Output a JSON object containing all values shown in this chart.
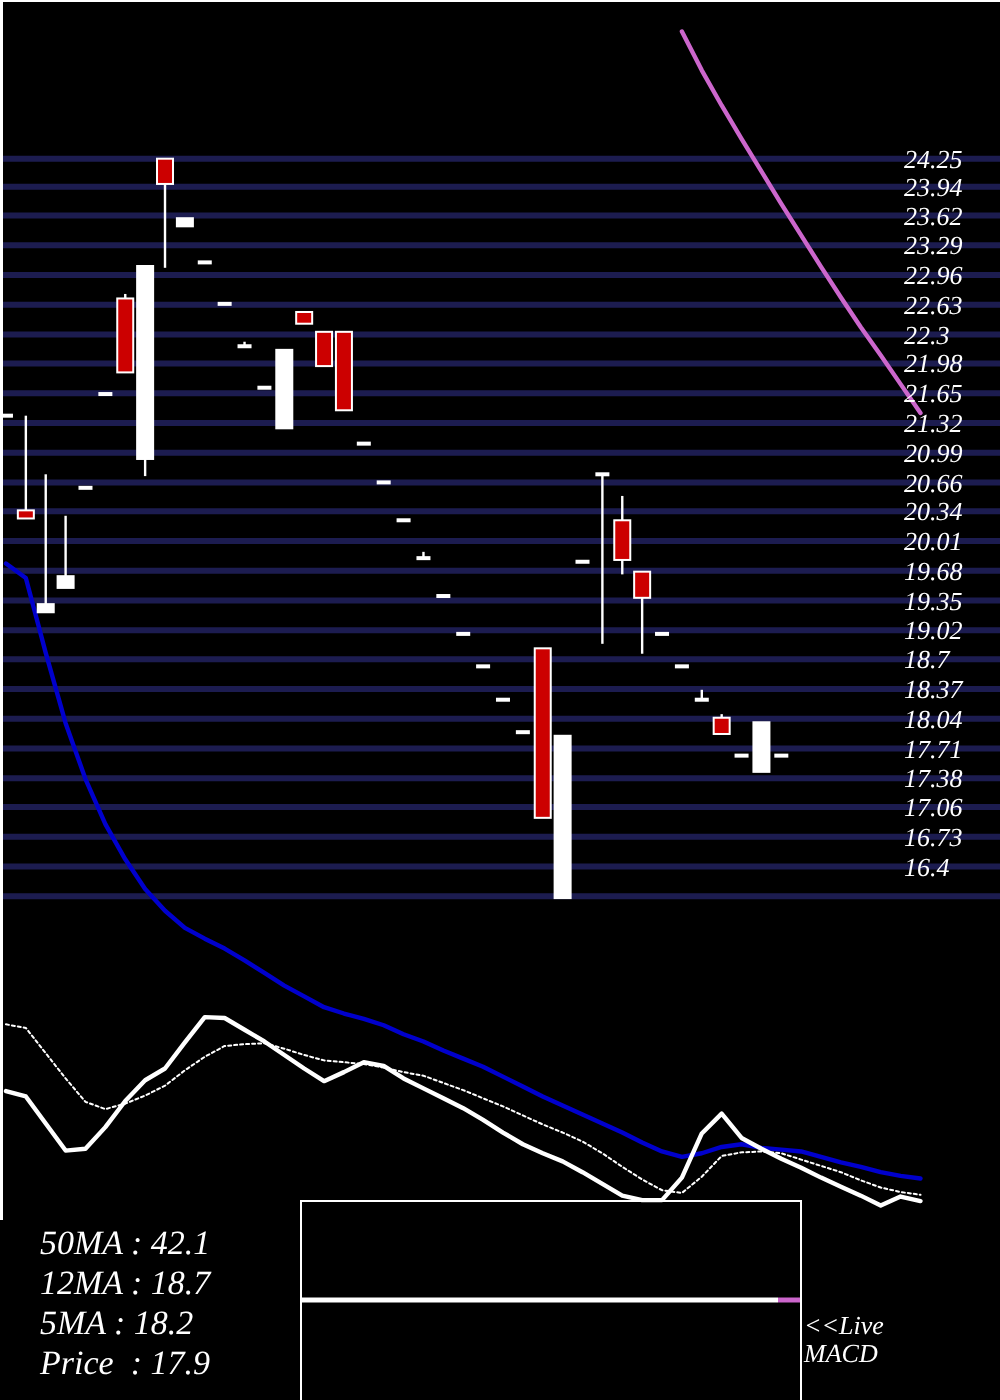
{
  "chart_data": {
    "type": "candlestick",
    "categories": [
      null,
      null,
      null,
      null,
      null,
      null,
      null,
      null,
      null,
      null,
      null,
      null,
      null,
      null,
      null,
      null,
      null,
      null,
      null,
      null,
      null,
      null,
      null,
      null,
      null,
      null,
      null,
      null,
      null,
      null,
      null,
      null,
      null,
      null,
      null,
      null,
      null,
      null,
      null,
      null,
      null,
      null,
      null,
      null,
      null,
      null,
      null
    ],
    "ohlc": [
      [
        21.4,
        21.4,
        21.4,
        21.4
      ],
      [
        20.35,
        21.4,
        20.26,
        20.26
      ],
      [
        19.22,
        20.75,
        19.22,
        19.31
      ],
      [
        19.49,
        20.29,
        19.49,
        19.62
      ],
      [
        20.6,
        20.6,
        20.6,
        20.6
      ],
      [
        21.64,
        21.64,
        21.64,
        21.64
      ],
      [
        22.7,
        22.75,
        21.88,
        21.88
      ],
      [
        20.92,
        23.06,
        20.73,
        23.06
      ],
      [
        24.25,
        24.25,
        23.04,
        23.97
      ],
      [
        23.5,
        23.59,
        23.5,
        23.59
      ],
      [
        23.1,
        23.1,
        23.1,
        23.1
      ],
      [
        22.64,
        22.64,
        22.64,
        22.64
      ],
      [
        22.17,
        22.22,
        22.17,
        22.17
      ],
      [
        21.71,
        21.71,
        21.71,
        21.71
      ],
      [
        21.26,
        22.13,
        21.26,
        22.13
      ],
      [
        22.55,
        22.55,
        22.42,
        22.42
      ],
      [
        22.33,
        22.33,
        21.95,
        21.95
      ],
      [
        22.33,
        22.33,
        21.46,
        21.46
      ],
      [
        21.09,
        21.09,
        21.09,
        21.09
      ],
      [
        20.66,
        20.66,
        20.66,
        20.66
      ],
      [
        20.24,
        20.24,
        20.24,
        20.24
      ],
      [
        19.82,
        19.89,
        19.82,
        19.82
      ],
      [
        19.4,
        19.4,
        19.4,
        19.4
      ],
      [
        18.98,
        18.98,
        18.98,
        18.98
      ],
      [
        18.62,
        18.62,
        18.62,
        18.62
      ],
      [
        18.25,
        18.25,
        18.25,
        18.25
      ],
      [
        17.89,
        17.89,
        17.89,
        17.89
      ],
      [
        18.82,
        18.82,
        16.94,
        16.94
      ],
      [
        16.05,
        17.85,
        16.05,
        17.85
      ],
      [
        19.78,
        19.78,
        19.78,
        19.78
      ],
      [
        20.75,
        20.75,
        18.87,
        20.75
      ],
      [
        20.24,
        20.51,
        19.64,
        19.8
      ],
      [
        19.67,
        19.67,
        18.76,
        19.38
      ],
      [
        18.98,
        18.98,
        18.98,
        18.98
      ],
      [
        18.62,
        18.62,
        18.62,
        18.62
      ],
      [
        18.25,
        18.36,
        18.25,
        18.25
      ],
      [
        18.05,
        18.09,
        17.87,
        17.87
      ],
      [
        17.63,
        17.63,
        17.63,
        17.63
      ],
      [
        17.45,
        18.0,
        17.45,
        18.0
      ],
      [
        17.63,
        17.63,
        17.63,
        17.63
      ],
      null,
      null,
      null,
      null,
      null,
      null,
      null
    ],
    "series": [
      {
        "type": "line",
        "color": "#0000cc",
        "values": [
          19.76,
          19.6,
          18.77,
          17.99,
          17.37,
          16.87,
          16.48,
          16.15,
          15.91,
          15.72,
          15.6,
          15.49,
          15.36,
          15.22,
          15.08,
          14.96,
          14.84,
          14.77,
          14.71,
          14.64,
          14.54,
          14.46,
          14.36,
          14.27,
          14.18,
          14.07,
          13.96,
          13.85,
          13.75,
          13.65,
          13.55,
          13.45,
          13.34,
          13.24,
          13.18,
          13.22,
          13.29,
          13.32,
          13.28,
          13.26,
          13.24,
          13.18,
          13.12,
          13.07,
          13.01,
          12.97,
          12.94
        ]
      },
      {
        "type": "line",
        "color": "#cc66cc",
        "values": [
          null,
          null,
          null,
          null,
          null,
          null,
          null,
          null,
          null,
          null,
          null,
          null,
          null,
          null,
          null,
          null,
          null,
          null,
          null,
          null,
          null,
          null,
          null,
          null,
          null,
          null,
          null,
          null,
          null,
          null,
          null,
          null,
          null,
          null,
          25.66,
          25.23,
          24.84,
          24.47,
          24.11,
          23.75,
          23.4,
          23.05,
          22.71,
          22.38,
          22.07,
          21.75,
          21.43
        ]
      },
      {
        "type": "line",
        "color": "#ffffff",
        "values": [
          13.91,
          13.85,
          13.55,
          13.25,
          13.27,
          13.51,
          13.8,
          14.03,
          14.16,
          14.45,
          14.73,
          14.72,
          14.59,
          14.46,
          14.31,
          14.16,
          14.02,
          14.12,
          14.23,
          14.19,
          14.05,
          13.94,
          13.83,
          13.72,
          13.59,
          13.45,
          13.32,
          13.22,
          13.13,
          13.01,
          12.88,
          12.75,
          12.7,
          12.7,
          12.95,
          13.44,
          13.66,
          13.39,
          13.27,
          13.16,
          13.06,
          12.95,
          12.85,
          12.75,
          12.64,
          12.74,
          12.69
        ]
      },
      {
        "type": "line",
        "color": "#ffffff",
        "line_style": "dotted",
        "values": [
          14.65,
          14.61,
          14.33,
          14.05,
          13.79,
          13.71,
          13.77,
          13.86,
          13.97,
          14.14,
          14.29,
          14.41,
          14.43,
          14.44,
          14.38,
          14.31,
          14.25,
          14.23,
          14.21,
          14.17,
          14.12,
          14.08,
          14.0,
          13.92,
          13.83,
          13.74,
          13.64,
          13.54,
          13.45,
          13.35,
          13.22,
          13.07,
          12.93,
          12.81,
          12.78,
          12.96,
          13.19,
          13.23,
          13.24,
          13.22,
          13.15,
          13.08,
          13.01,
          12.92,
          12.84,
          12.79,
          12.76
        ]
      }
    ],
    "ylim": [
      12.48,
      26.01
    ],
    "yticks": [
      24.25,
      23.94,
      23.62,
      23.29,
      22.96,
      22.63,
      22.3,
      21.98,
      21.65,
      21.32,
      20.99,
      20.66,
      20.34,
      20.01,
      19.68,
      19.35,
      19.02,
      18.7,
      18.37,
      18.04,
      17.71,
      17.38,
      17.06,
      16.73,
      16.4,
      {
        "value": 16.07,
        "label": null
      }
    ],
    "grid": "y",
    "tick_labels": "y",
    "annotations": [
      "50MA : 42.1",
      "12MA : 18.7",
      "5MA : 18.2",
      "Price  : 17.9",
      "<<Live MACD"
    ]
  }
}
